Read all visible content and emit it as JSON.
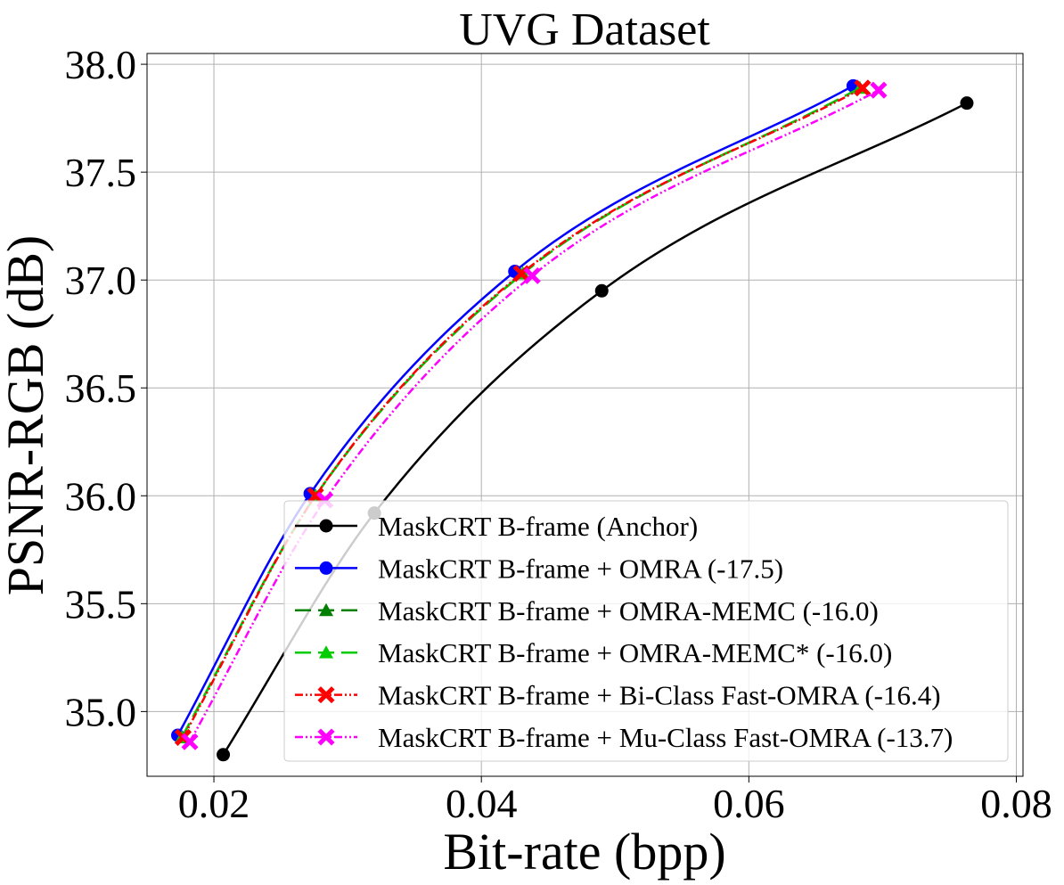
{
  "chart_data": {
    "type": "line",
    "title": "UVG Dataset",
    "xlabel": "Bit-rate (bpp)",
    "ylabel": "PSNR-RGB (dB)",
    "xlim": [
      0.015,
      0.0805
    ],
    "ylim": [
      34.7,
      38.05
    ],
    "grid": true,
    "legend_position": "lower-right",
    "x_ticks": [
      {
        "value": 0.02,
        "label": "0.02"
      },
      {
        "value": 0.04,
        "label": "0.04"
      },
      {
        "value": 0.06,
        "label": "0.06"
      },
      {
        "value": 0.08,
        "label": "0.08"
      }
    ],
    "y_ticks": [
      {
        "value": 35.0,
        "label": "35.0"
      },
      {
        "value": 35.5,
        "label": "35.5"
      },
      {
        "value": 36.0,
        "label": "36.0"
      },
      {
        "value": 36.5,
        "label": "36.5"
      },
      {
        "value": 37.0,
        "label": "37.0"
      },
      {
        "value": 37.5,
        "label": "37.5"
      },
      {
        "value": 38.0,
        "label": "38.0"
      }
    ],
    "series": [
      {
        "name": "MaskCRT B-frame (Anchor)",
        "color": "#000000",
        "marker": "circle",
        "dash": "",
        "x": [
          0.0207,
          0.032,
          0.049,
          0.0763
        ],
        "y": [
          34.8,
          35.92,
          36.95,
          37.82
        ]
      },
      {
        "name": "MaskCRT B-frame + OMRA (-17.5)",
        "color": "#0000ff",
        "marker": "circle",
        "dash": "",
        "x": [
          0.0173,
          0.0272,
          0.0425,
          0.0678
        ],
        "y": [
          34.89,
          36.01,
          37.04,
          37.9
        ]
      },
      {
        "name": "MaskCRT B-frame + OMRA-MEMC (-16.0)",
        "color": "#008000",
        "marker": "triangle",
        "dash": "18 8",
        "x": [
          0.0176,
          0.0276,
          0.0431,
          0.0683
        ],
        "y": [
          34.88,
          36.0,
          37.03,
          37.89
        ]
      },
      {
        "name": "MaskCRT B-frame + OMRA-MEMC* (-16.0)",
        "color": "#00cc00",
        "marker": "triangle",
        "dash": "18 8",
        "x": [
          0.0176,
          0.0276,
          0.0431,
          0.0683
        ],
        "y": [
          34.88,
          36.0,
          37.03,
          37.89
        ]
      },
      {
        "name": "MaskCRT B-frame + Bi-Class Fast-OMRA (-16.4)",
        "color": "#ff0000",
        "marker": "x",
        "dash": "9 3 2 3 2 3",
        "x": [
          0.0177,
          0.0276,
          0.043,
          0.0685
        ],
        "y": [
          34.88,
          36.0,
          37.03,
          37.89
        ]
      },
      {
        "name": "MaskCRT B-frame + Mu-Class Fast-OMRA (-13.7)",
        "color": "#ff00ff",
        "marker": "x",
        "dash": "9 3 2 3 2 3",
        "x": [
          0.0182,
          0.0283,
          0.0438,
          0.0697
        ],
        "y": [
          34.86,
          35.98,
          37.02,
          37.88
        ]
      }
    ]
  }
}
